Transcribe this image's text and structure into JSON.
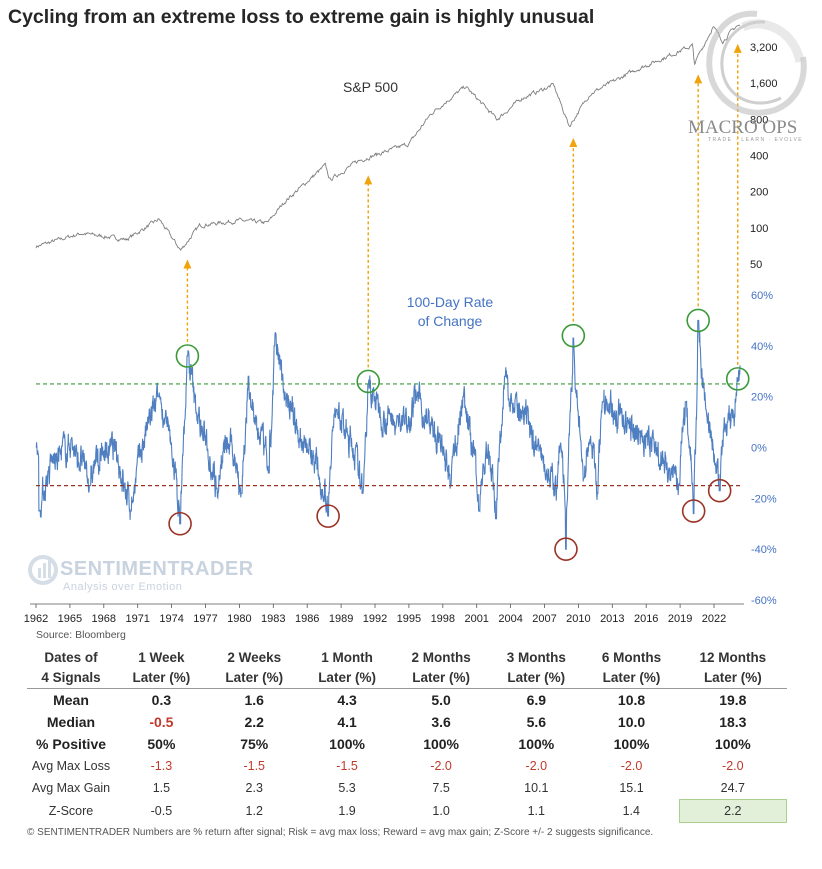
{
  "title": "Cycling from an extreme loss to extreme gain is highly unusual",
  "source": "Source: Bloomberg",
  "watermark": {
    "main": "SENTIMENTRADER",
    "sub": "Analysis over Emotion"
  },
  "logo": {
    "text": "MACRO OPS",
    "sub": "TRADE · LEARN · EVOLVE"
  },
  "colors": {
    "line": "#4f7fc1",
    "spx": "#7f7f7f",
    "green": "#3a9a3a",
    "red": "#9b3326",
    "arrow": "#f0a30a",
    "accent": "#4472c4"
  },
  "chart_data": [
    {
      "type": "line",
      "series_label": "S&P 500",
      "scale": "log",
      "y_ticks": [
        "3,200",
        "1,600",
        "800",
        "400",
        "200",
        "100",
        "50"
      ],
      "y_tick_values": [
        3200,
        1600,
        800,
        400,
        200,
        100,
        50
      ],
      "anchors": [
        [
          1962.0,
          70
        ],
        [
          1966,
          90
        ],
        [
          1970,
          80
        ],
        [
          1972.9,
          118
        ],
        [
          1974.8,
          65
        ],
        [
          1976.5,
          105
        ],
        [
          1980,
          115
        ],
        [
          1982.5,
          110
        ],
        [
          1984,
          165
        ],
        [
          1987.6,
          330
        ],
        [
          1988.0,
          250
        ],
        [
          1990.5,
          360
        ],
        [
          1991.2,
          380
        ],
        [
          1995,
          500
        ],
        [
          1997,
          900
        ],
        [
          2000,
          1500
        ],
        [
          2002.8,
          800
        ],
        [
          2005,
          1200
        ],
        [
          2007.8,
          1550
        ],
        [
          2009.2,
          700
        ],
        [
          2011,
          1300
        ],
        [
          2015,
          2050
        ],
        [
          2018,
          2700
        ],
        [
          2020.1,
          3300
        ],
        [
          2020.25,
          2300
        ],
        [
          2021.9,
          4700
        ],
        [
          2022.8,
          3600
        ],
        [
          2024.0,
          4800
        ]
      ],
      "noise_seed": 7
    },
    {
      "type": "line",
      "series_label": "100-Day Rate\nof Change",
      "series_label_lines": [
        "100-Day Rate",
        "of Change"
      ],
      "y_ticks": [
        "60%",
        "40%",
        "20%",
        "0%",
        "-20%",
        "-40%",
        "-60%"
      ],
      "y_tick_values": [
        60,
        40,
        20,
        0,
        -20,
        -40,
        -60
      ],
      "ylim": [
        -60,
        60
      ],
      "x_ticks": [
        "1962",
        "1965",
        "1968",
        "1971",
        "1974",
        "1977",
        "1980",
        "1983",
        "1986",
        "1989",
        "1992",
        "1995",
        "1998",
        "2001",
        "2004",
        "2007",
        "2010",
        "2013",
        "2016",
        "2019",
        "2022"
      ],
      "x_tick_values": [
        1962,
        1965,
        1968,
        1971,
        1974,
        1977,
        1980,
        1983,
        1986,
        1989,
        1992,
        1995,
        1998,
        2001,
        2004,
        2007,
        2010,
        2013,
        2016,
        2019,
        2022
      ],
      "xlim": [
        1962,
        2024.3
      ],
      "thresholds": [
        {
          "value": 25,
          "color": "green"
        },
        {
          "value": -15,
          "color": "red"
        }
      ],
      "extremes": [
        [
          1962.3,
          -25
        ],
        [
          1966.8,
          -15
        ],
        [
          1970.4,
          -25
        ],
        [
          1972.8,
          20
        ],
        [
          1974.75,
          -30
        ],
        [
          1975.4,
          36
        ],
        [
          1978,
          -16
        ],
        [
          1980.2,
          -18
        ],
        [
          1980.8,
          28
        ],
        [
          1982.6,
          -10
        ],
        [
          1983.1,
          40
        ],
        [
          1987.85,
          -27
        ],
        [
          1988.6,
          15
        ],
        [
          1990.9,
          -18
        ],
        [
          1991.4,
          25
        ],
        [
          1995.7,
          20
        ],
        [
          1998.7,
          -15
        ],
        [
          1999.8,
          20
        ],
        [
          2001.2,
          -25
        ],
        [
          2002.7,
          -28
        ],
        [
          2003.5,
          28
        ],
        [
          2008.1,
          -16
        ],
        [
          2008.9,
          -40
        ],
        [
          2009.55,
          43
        ],
        [
          2010.5,
          -12
        ],
        [
          2011.7,
          -18
        ],
        [
          2012.2,
          18
        ],
        [
          2018.95,
          -15
        ],
        [
          2019.5,
          18
        ],
        [
          2020.2,
          -26
        ],
        [
          2020.6,
          50
        ],
        [
          2022.5,
          -17
        ],
        [
          2023.2,
          10
        ],
        [
          2024.1,
          26
        ]
      ],
      "circles": [
        {
          "x": 1974.75,
          "y": -30,
          "kind": "red"
        },
        {
          "x": 1975.4,
          "y": 36,
          "kind": "green"
        },
        {
          "x": 1987.85,
          "y": -27,
          "kind": "red"
        },
        {
          "x": 1991.4,
          "y": 26,
          "kind": "green"
        },
        {
          "x": 2008.9,
          "y": -40,
          "kind": "red"
        },
        {
          "x": 2009.55,
          "y": 44,
          "kind": "green"
        },
        {
          "x": 2020.2,
          "y": -25,
          "kind": "red"
        },
        {
          "x": 2020.6,
          "y": 50,
          "kind": "green"
        },
        {
          "x": 2022.5,
          "y": -17,
          "kind": "red"
        },
        {
          "x": 2024.1,
          "y": 27,
          "kind": "green"
        }
      ],
      "arrows": [
        1975.4,
        1991.4,
        2009.55,
        2020.6,
        2024.1
      ]
    }
  ],
  "table": {
    "headers_line1": [
      "Dates of",
      "1 Week",
      "2 Weeks",
      "1 Month",
      "2 Months",
      "3 Months",
      "6 Months",
      "12 Months"
    ],
    "headers_line2": [
      "4 Signals",
      "Later (%)",
      "Later (%)",
      "Later (%)",
      "Later (%)",
      "Later (%)",
      "Later (%)",
      "Later (%)"
    ],
    "rows": [
      {
        "label": "Mean",
        "values": [
          "0.3",
          "1.6",
          "4.3",
          "5.0",
          "6.9",
          "10.8",
          "19.8"
        ]
      },
      {
        "label": "Median",
        "values": [
          "-0.5",
          "2.2",
          "4.1",
          "3.6",
          "5.6",
          "10.0",
          "18.3"
        ]
      },
      {
        "label": "% Positive",
        "values": [
          "50%",
          "75%",
          "100%",
          "100%",
          "100%",
          "100%",
          "100%"
        ]
      },
      {
        "label": "Avg Max Loss",
        "values": [
          "-1.3",
          "-1.5",
          "-1.5",
          "-2.0",
          "-2.0",
          "-2.0",
          "-2.0"
        ]
      },
      {
        "label": "Avg Max Gain",
        "values": [
          "1.5",
          "2.3",
          "5.3",
          "7.5",
          "10.1",
          "15.1",
          "24.7"
        ]
      },
      {
        "label": "Z-Score",
        "values": [
          "-0.5",
          "1.2",
          "1.9",
          "1.0",
          "1.1",
          "1.4",
          "2.2"
        ]
      }
    ]
  },
  "footer": "© SENTIMENTRADER  Numbers are % return after signal; Risk = avg max loss; Reward = avg max gain; Z-Score +/- 2 suggests significance."
}
